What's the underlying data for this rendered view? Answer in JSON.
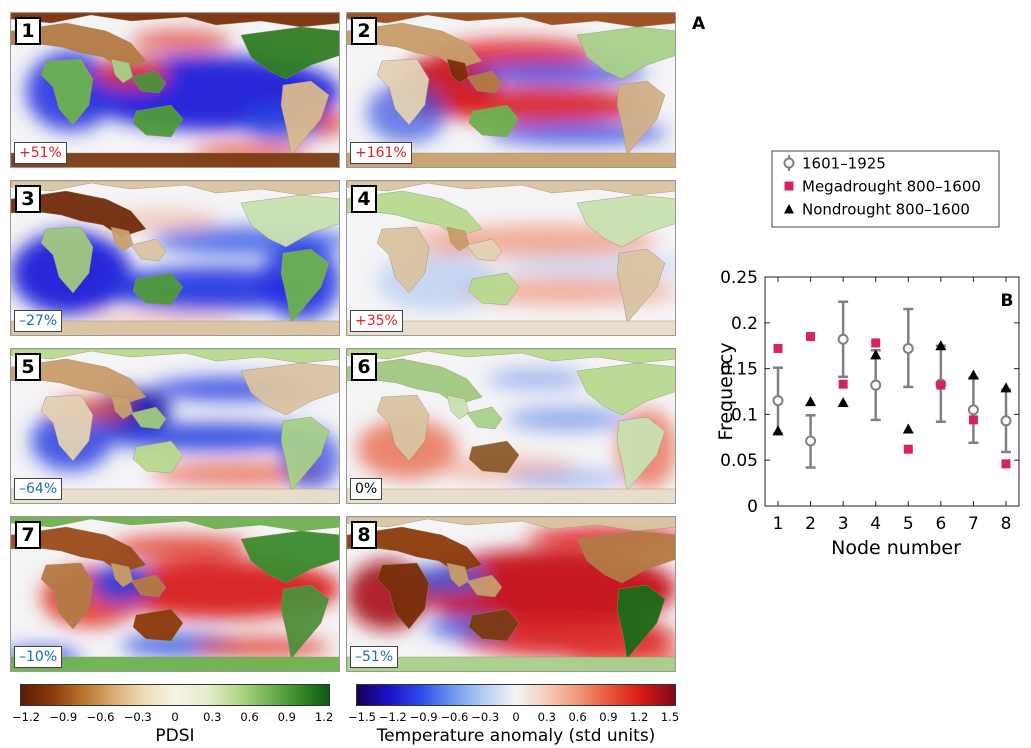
{
  "panel_letter_a": "A",
  "panel_letter_b": "B",
  "maps": [
    {
      "node": "1",
      "pct": "+51%",
      "pct_color": "#e02020"
    },
    {
      "node": "2",
      "pct": "+161%",
      "pct_color": "#e02020"
    },
    {
      "node": "3",
      "pct": "–27%",
      "pct_color": "#1f6fa8"
    },
    {
      "node": "4",
      "pct": "+35%",
      "pct_color": "#e02020"
    },
    {
      "node": "5",
      "pct": "–64%",
      "pct_color": "#1f6fa8"
    },
    {
      "node": "6",
      "pct": "0%",
      "pct_color": "#000000"
    },
    {
      "node": "7",
      "pct": "–10%",
      "pct_color": "#1f6fa8"
    },
    {
      "node": "8",
      "pct": "–51%",
      "pct_color": "#1f6fa8"
    }
  ],
  "colorbars": {
    "pdsi": {
      "label": "PDSI",
      "ticks": [
        "−1.2",
        "−0.9",
        "−0.6",
        "−0.3",
        "0",
        "0.3",
        "0.6",
        "0.9",
        "1.2"
      ]
    },
    "temp": {
      "label": "Temperature anomaly (std units)",
      "ticks": [
        "−1.5",
        "−1.2",
        "−0.9",
        "−0.6",
        "−0.3",
        "0",
        "0.3",
        "0.6",
        "0.9",
        "1.2",
        "1.5"
      ]
    }
  },
  "chart_data": {
    "type": "scatter",
    "xlabel": "Node number",
    "ylabel": "Frequency",
    "categories": [
      1,
      2,
      3,
      4,
      5,
      6,
      7,
      8
    ],
    "ylim": [
      0,
      0.25
    ],
    "yticks": [
      "0",
      "0.05",
      "0.1",
      "0.15",
      "0.2",
      "0.25"
    ],
    "xticks": [
      "1",
      "2",
      "3",
      "4",
      "5",
      "6",
      "7",
      "8"
    ],
    "legend_position": "top",
    "grid": false,
    "series": [
      {
        "name": "1601–1925",
        "marker": "open-circle-errorbar",
        "color": "#808080",
        "values": [
          0.115,
          0.071,
          0.182,
          0.132,
          0.172,
          0.133,
          0.105,
          0.093
        ],
        "lower": [
          0.079,
          0.042,
          0.141,
          0.094,
          0.13,
          0.092,
          0.069,
          0.059
        ],
        "upper": [
          0.151,
          0.099,
          0.223,
          0.17,
          0.215,
          0.175,
          0.14,
          0.127
        ]
      },
      {
        "name": "Megadrought 800–1600",
        "marker": "square",
        "color": "#d6245b",
        "values": [
          0.172,
          0.185,
          0.133,
          0.178,
          0.062,
          0.132,
          0.094,
          0.046
        ]
      },
      {
        "name": "Nondrought 800–1600",
        "marker": "triangle",
        "color": "#000000",
        "values": [
          0.082,
          0.114,
          0.113,
          0.165,
          0.084,
          0.175,
          0.143,
          0.129
        ]
      }
    ]
  }
}
